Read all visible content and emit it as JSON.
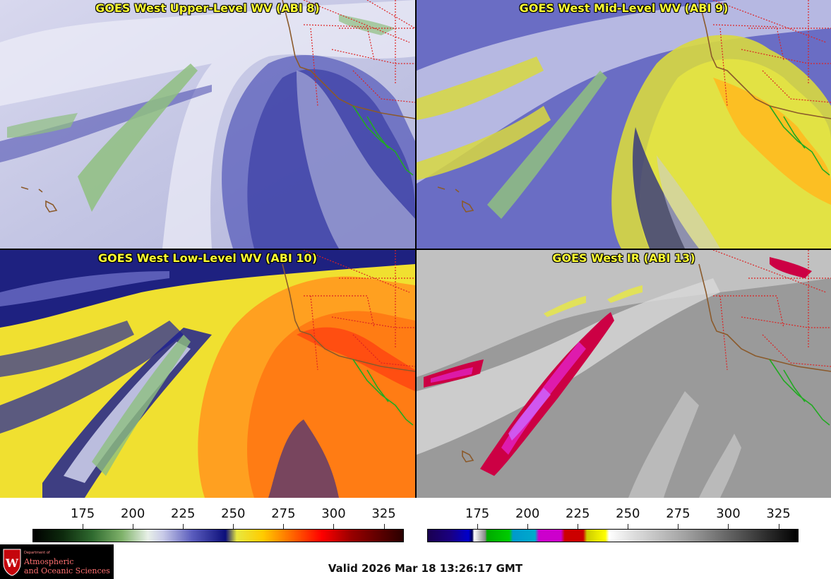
{
  "panels": [
    {
      "title": "GOES West Upper-Level WV (ABI 8)"
    },
    {
      "title": "GOES West Mid-Level WV (ABI 9)"
    },
    {
      "title": "GOES West Low-Level WV (ABI 10)"
    },
    {
      "title": "GOES West IR (ABI 13)"
    }
  ],
  "colorbars": {
    "wv": {
      "ticks": [
        "175",
        "200",
        "225",
        "250",
        "275",
        "300",
        "325"
      ],
      "min": 150,
      "max": 335
    },
    "ir": {
      "ticks": [
        "175",
        "200",
        "225",
        "250",
        "275",
        "300",
        "325"
      ],
      "min": 150,
      "max": 335
    }
  },
  "logo": {
    "dept": "Department of",
    "line1": "Atmospheric",
    "line2": "and Oceanic Sciences"
  },
  "valid_time": "Valid 2026 Mar 18 13:26:17 GMT",
  "colors": {
    "title_text": "#ffff33",
    "state_borders": "#dd2222",
    "coastline": "#8b5a2b",
    "mexico_coast": "#22aa22"
  }
}
